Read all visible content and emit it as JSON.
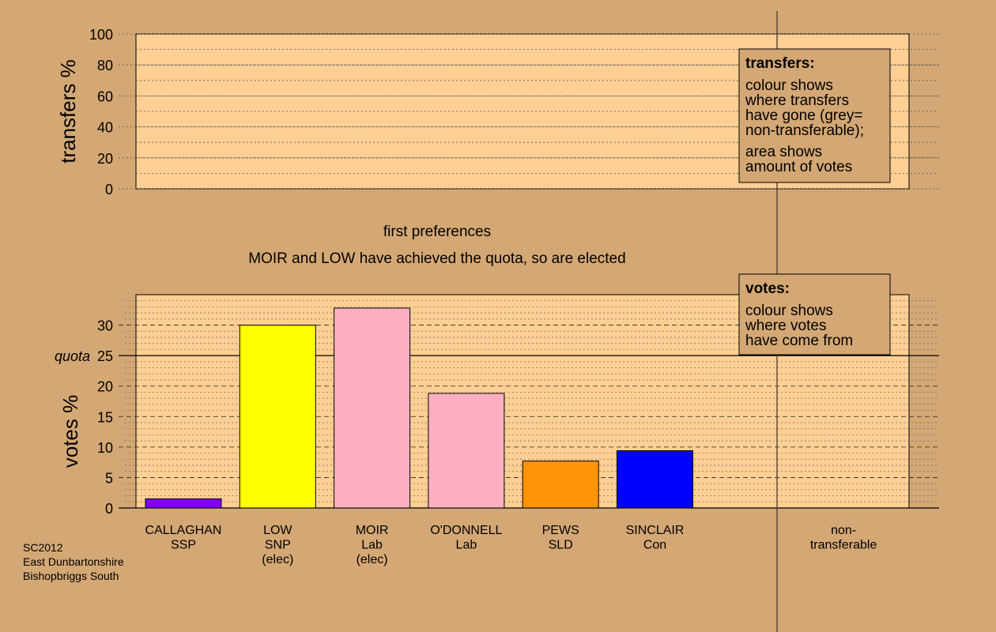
{
  "footer": [
    "SC2012",
    "East Dunbartonshire",
    "Bishopbriggs South"
  ],
  "captions": {
    "stage": "first preferences",
    "note": "MOIR and LOW have achieved the quota, so are elected"
  },
  "legends": {
    "transfers": {
      "title": "transfers:",
      "lines": [
        "colour shows",
        "where transfers",
        "have gone (grey=",
        "non-transferable);",
        "area shows",
        "amount of votes"
      ]
    },
    "votes": {
      "title": "votes:",
      "lines": [
        "colour shows",
        "where votes",
        "have come from"
      ]
    }
  },
  "colors": {
    "background": "#d4a874",
    "plot_background": "#ffcf94"
  },
  "chart_data": [
    {
      "type": "bar",
      "ylabel": "transfers %",
      "ylim": [
        0,
        100
      ],
      "yticks": [
        0,
        20,
        40,
        60,
        80,
        100
      ],
      "series": []
    },
    {
      "type": "bar",
      "ylabel": "votes %",
      "ylim": [
        0,
        35
      ],
      "yticks": [
        0,
        5,
        10,
        15,
        20,
        25,
        30
      ],
      "quota": {
        "label": "quota",
        "value": 25
      },
      "categories": [
        {
          "lines": [
            "CALLAGHAN",
            "SSP"
          ]
        },
        {
          "lines": [
            "LOW",
            "SNP",
            "(elec)"
          ]
        },
        {
          "lines": [
            "MOIR",
            "Lab",
            "(elec)"
          ]
        },
        {
          "lines": [
            "O'DONNELL",
            "Lab"
          ]
        },
        {
          "lines": [
            "PEWS",
            "SLD"
          ]
        },
        {
          "lines": [
            "SINCLAIR",
            "Con"
          ]
        },
        {
          "lines": []
        },
        {
          "lines": [
            "non-",
            "transferable"
          ]
        }
      ],
      "values": [
        1.5,
        30.0,
        32.8,
        18.8,
        7.7,
        9.4,
        null,
        null
      ],
      "bar_colors": [
        "#8000ff",
        "#ffff00",
        "#ffb0c0",
        "#ffb0c0",
        "#ff9408",
        "#0000ff",
        null,
        null
      ]
    }
  ]
}
